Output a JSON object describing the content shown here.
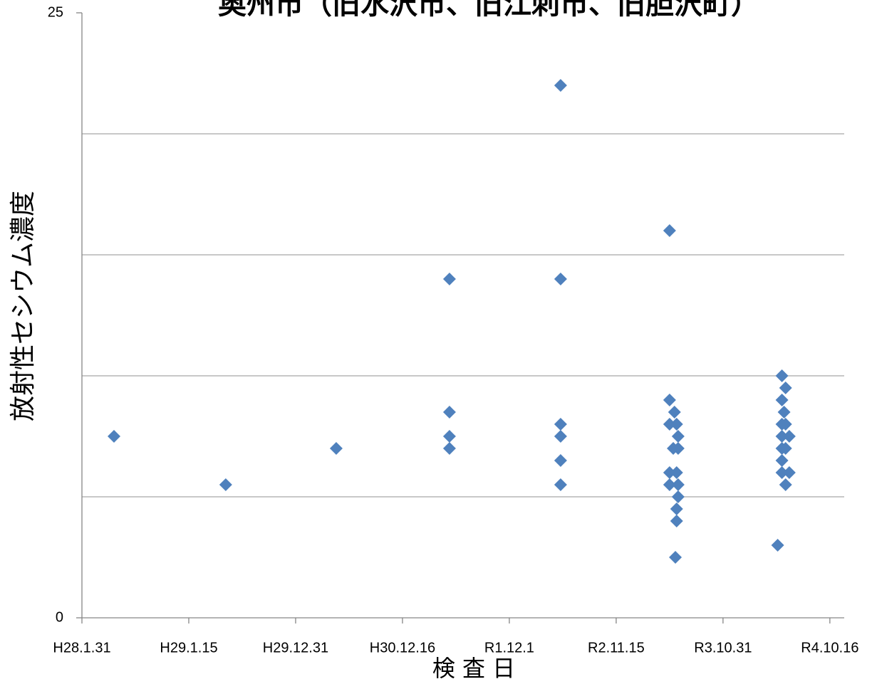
{
  "chart_data": {
    "type": "scatter",
    "title": "奥州市（旧水沢市、旧江刺市、旧胆沢町）",
    "x_label": "検 査 日",
    "y_label": "放射性セシウム濃度",
    "color": "#4f81bd",
    "marker": "diamond",
    "x": [
      42505,
      42871,
      43233,
      43604,
      43604,
      43604,
      43604,
      43968,
      43968,
      43968,
      43968,
      43968,
      43968,
      44325,
      44325,
      44341,
      44325,
      44348,
      44353,
      44337,
      44353,
      44325,
      44348,
      44325,
      44353,
      44353,
      44348,
      44348,
      44344,
      44693,
      44705,
      44693,
      44700,
      44693,
      44705,
      44693,
      44717,
      44693,
      44705,
      44693,
      44693,
      44717,
      44705,
      44679
    ],
    "values": [
      7.5,
      5.5,
      7,
      8.5,
      7.5,
      7,
      14,
      22,
      14,
      8,
      7.5,
      6.5,
      5.5,
      16,
      9,
      8.5,
      8,
      8,
      7.5,
      7,
      7,
      6,
      6,
      5.5,
      5.5,
      5,
      4.5,
      4,
      2.5,
      10,
      9.5,
      9,
      8.5,
      8,
      8,
      7.5,
      7.5,
      7,
      7,
      6.5,
      6,
      6,
      5.5,
      3
    ],
    "xlim": [
      42400,
      44897
    ],
    "ylim": [
      0,
      25
    ],
    "xticks": [
      {
        "value": 42400,
        "label": "H28.1.31"
      },
      {
        "value": 42750,
        "label": "H29.1.15"
      },
      {
        "value": 43100,
        "label": "H29.12.31"
      },
      {
        "value": 43450,
        "label": "H30.12.16"
      },
      {
        "value": 43800,
        "label": "R1.12.1"
      },
      {
        "value": 44150,
        "label": "R2.11.15"
      },
      {
        "value": 44500,
        "label": "R3.10.31"
      },
      {
        "value": 44850,
        "label": "R4.10.16"
      }
    ],
    "yticks": [
      0,
      25
    ],
    "ygrid": [
      5,
      10,
      15,
      20
    ],
    "grid": true
  }
}
